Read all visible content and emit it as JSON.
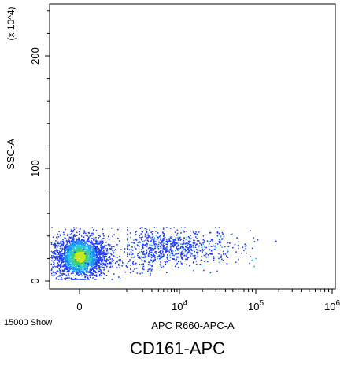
{
  "chart_data": {
    "type": "scatter",
    "title": "CD161-APC",
    "xlabel": "APC R660-APC-A",
    "ylabel": "SSC-A",
    "y_multiplier_label": "(x 10^4)",
    "x_scale": "biexponential",
    "y_scale": "linear",
    "xlim": [
      -600,
      1000000
    ],
    "ylim": [
      -10,
      250
    ],
    "x_ticks": [
      {
        "value": 0,
        "base": "0",
        "exp": ""
      },
      {
        "value": 10000,
        "base": "10",
        "exp": "4"
      },
      {
        "value": 100000,
        "base": "10",
        "exp": "5"
      },
      {
        "value": 1000000,
        "base": "10",
        "exp": "6"
      }
    ],
    "y_ticks": [
      {
        "value": 0,
        "label": "0"
      },
      {
        "value": 100,
        "label": "100"
      },
      {
        "value": 200,
        "label": "200"
      }
    ],
    "events_label": "15000 Show",
    "colormap": "density (blue → cyan → green → yellow)",
    "populations": [
      {
        "name": "",
        "x_center": 0,
        "x_spread": 300,
        "y_center": 22,
        "y_spread": 9,
        "relative_size": 0.7
      },
      {
        "name": "",
        "x_center": 8000,
        "x_spread_log": 0.45,
        "y_center": 30,
        "y_spread": 8,
        "relative_size": 0.3
      }
    ],
    "grid": false,
    "legend": "none"
  }
}
